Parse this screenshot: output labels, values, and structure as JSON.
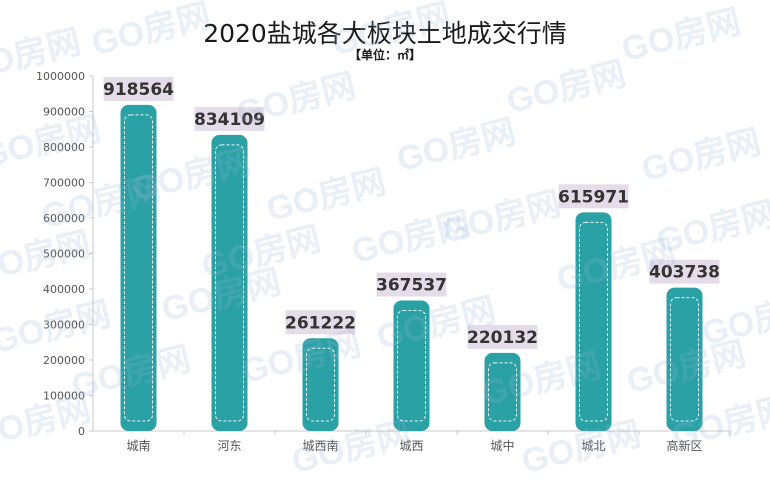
{
  "chart_data": {
    "type": "bar",
    "title": "2020盐城各大板块土地成交行情",
    "subtitle": "【单位：㎡】",
    "categories": [
      "城南",
      "河东",
      "城西南",
      "城西",
      "城中",
      "城北",
      "高新区"
    ],
    "values": [
      918564,
      834109,
      261222,
      367537,
      220132,
      615971,
      403738
    ],
    "data_labels": [
      "918564",
      "834109",
      "261222",
      "367537",
      "220132",
      "615971",
      "403738"
    ],
    "yticks": [
      "0",
      "100000",
      "200000",
      "300000",
      "400000",
      "500000",
      "600000",
      "700000",
      "800000",
      "900000",
      "1000000"
    ],
    "ylim": [
      0,
      1000000
    ],
    "grid": false,
    "legend": "none",
    "colors": {
      "bar": "#2aa1a5",
      "label_bg": "#e4dce8",
      "axis": "#c8c8c8"
    }
  },
  "watermark": "GO房网"
}
